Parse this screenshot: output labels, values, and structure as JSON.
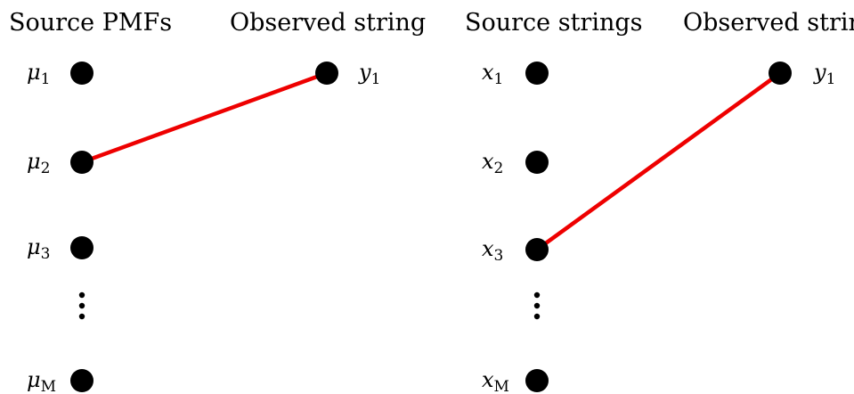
{
  "colors": {
    "node": "#000000",
    "edge": "#ee0000",
    "text": "#000000"
  },
  "panels": [
    {
      "id": "pmf",
      "source_heading": "Source PMFs",
      "observed_heading": "Observed string",
      "sources": [
        {
          "symbol": "μ",
          "subscript": "1"
        },
        {
          "symbol": "μ",
          "subscript": "2"
        },
        {
          "symbol": "μ",
          "subscript": "3"
        },
        {
          "symbol": "μ",
          "subscript": "M"
        }
      ],
      "ellipsis_after_index": 2,
      "observed": {
        "symbol": "y",
        "subscript": "1"
      },
      "edge": {
        "from_source_index": 1,
        "to": "observed"
      }
    },
    {
      "id": "strings",
      "source_heading": "Source strings",
      "observed_heading": "Observed string",
      "sources": [
        {
          "symbol": "x",
          "subscript": "1"
        },
        {
          "symbol": "x",
          "subscript": "2"
        },
        {
          "symbol": "x",
          "subscript": "3"
        },
        {
          "symbol": "x",
          "subscript": "M"
        }
      ],
      "ellipsis_after_index": 2,
      "observed": {
        "symbol": "y",
        "subscript": "1"
      },
      "edge": {
        "from_source_index": 2,
        "to": "observed"
      }
    }
  ]
}
